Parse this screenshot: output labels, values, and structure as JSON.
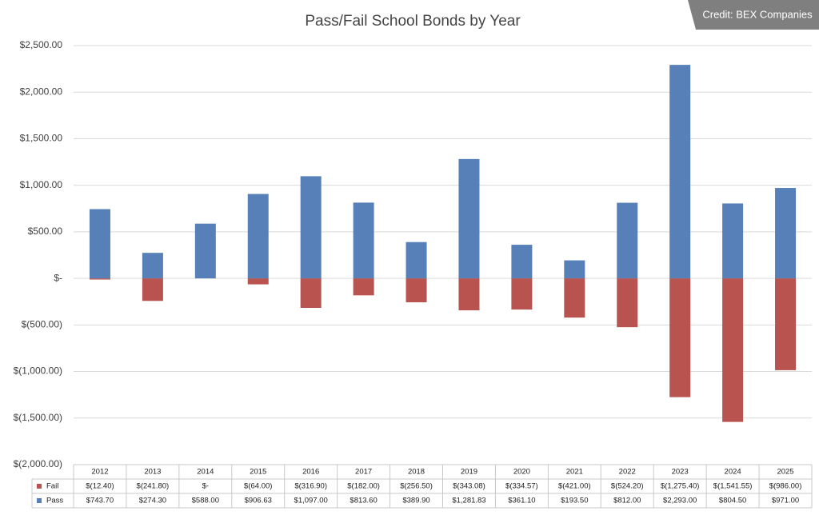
{
  "chart_data": {
    "type": "bar",
    "title": "Pass/Fail School Bonds by Year",
    "credit": "Credit: BEX Companies",
    "categories": [
      "2012",
      "2013",
      "2014",
      "2015",
      "2016",
      "2017",
      "2018",
      "2019",
      "2020",
      "2021",
      "2022",
      "2023",
      "2024",
      "2025"
    ],
    "series": [
      {
        "name": "Fail",
        "color": "#b9534f",
        "values": [
          -12.4,
          -241.8,
          0,
          -64.0,
          -316.9,
          -182.0,
          -256.5,
          -343.08,
          -334.57,
          -421.0,
          -524.2,
          -1275.4,
          -1541.55,
          -986.0
        ],
        "value_labels": [
          "$(12.40)",
          "$(241.80)",
          "$-",
          "$(64.00)",
          "$(316.90)",
          "$(182.00)",
          "$(256.50)",
          "$(343.08)",
          "$(334.57)",
          "$(421.00)",
          "$(524.20)",
          "$(1,275.40)",
          "$(1,541.55)",
          "$(986.00)"
        ]
      },
      {
        "name": "Pass",
        "color": "#5880b8",
        "values": [
          743.7,
          274.3,
          588.0,
          906.63,
          1097.0,
          813.6,
          389.9,
          1281.83,
          361.1,
          193.5,
          812.0,
          2293.0,
          804.5,
          971.0
        ],
        "value_labels": [
          "$743.70",
          "$274.30",
          "$588.00",
          "$906.63",
          "$1,097.00",
          "$813.60",
          "$389.90",
          "$1,281.83",
          "$361.10",
          "$193.50",
          "$812.00",
          "$2,293.00",
          "$804.50",
          "$971.00"
        ]
      }
    ],
    "ylim": [
      -2000,
      2500
    ],
    "yticks": [
      {
        "value": 2500,
        "label": "$2,500.00"
      },
      {
        "value": 2000,
        "label": "$2,000.00"
      },
      {
        "value": 1500,
        "label": "$1,500.00"
      },
      {
        "value": 1000,
        "label": "$1,000.00"
      },
      {
        "value": 500,
        "label": "$500.00"
      },
      {
        "value": 0,
        "label": "$-"
      },
      {
        "value": -500,
        "label": "$(500.00)"
      },
      {
        "value": -1000,
        "label": "$(1,000.00)"
      },
      {
        "value": -1500,
        "label": "$(1,500.00)"
      },
      {
        "value": -2000,
        "label": "$(2,000.00)"
      }
    ],
    "grid": true
  }
}
